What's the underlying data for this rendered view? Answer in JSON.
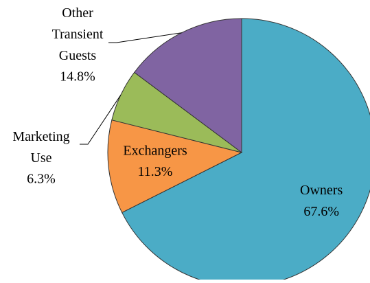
{
  "chart_data": {
    "type": "pie",
    "categories": [
      "Owners",
      "Exchangers",
      "Marketing Use",
      "Other Transient Guests"
    ],
    "values": [
      67.6,
      11.3,
      6.3,
      14.8
    ],
    "value_labels": [
      "67.6%",
      "11.3%",
      "6.3%",
      "14.8%"
    ],
    "colors": [
      "#4bacc6",
      "#f79646",
      "#9bbb59",
      "#8064a2"
    ]
  }
}
